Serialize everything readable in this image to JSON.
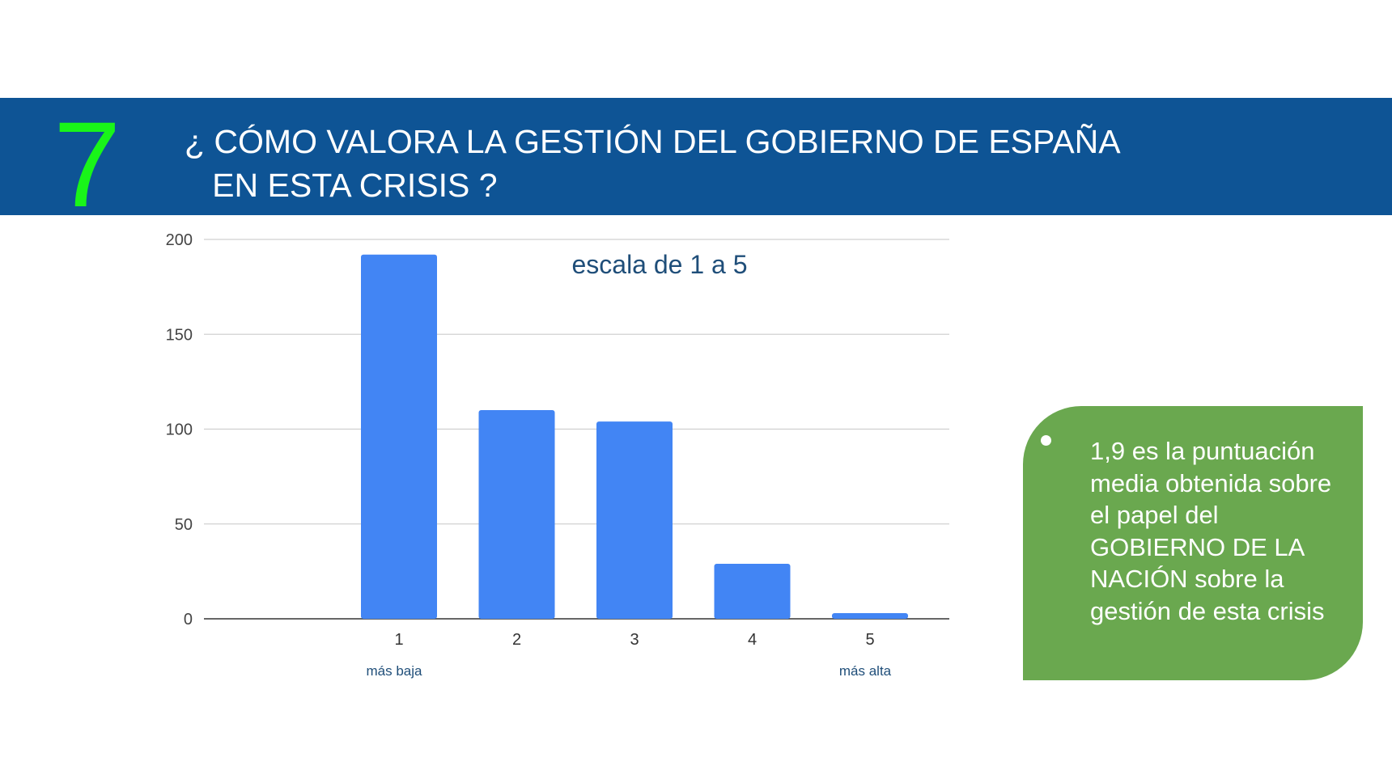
{
  "slide": {
    "number": "7",
    "question": "¿ CÓMO VALORA LA GESTIÓN DEL GOBIERNO DE ESPAÑA\n   EN ESTA CRISIS ?"
  },
  "colors": {
    "banner": "#0e5495",
    "number": "#19f519",
    "bar": "#4285f4",
    "note_bg": "#6aa84f",
    "chart_title": "#1f4e79"
  },
  "chart_data": {
    "type": "bar",
    "title": "escala de 1 a 5",
    "categories": [
      "1",
      "2",
      "3",
      "4",
      "5"
    ],
    "values": [
      192,
      110,
      104,
      29,
      3
    ],
    "ylim": [
      0,
      200
    ],
    "yticks": [
      0,
      50,
      100,
      150,
      200
    ],
    "xlabel": "",
    "ylabel": "",
    "grid": true,
    "legend": "none",
    "category_annotations": [
      "más baja",
      "",
      "",
      "",
      "más alta"
    ]
  },
  "note": {
    "text": "1,9 es la puntuación media obtenida sobre el papel del GOBIERNO DE LA NACIÓN sobre la gestión de esta crisis"
  }
}
